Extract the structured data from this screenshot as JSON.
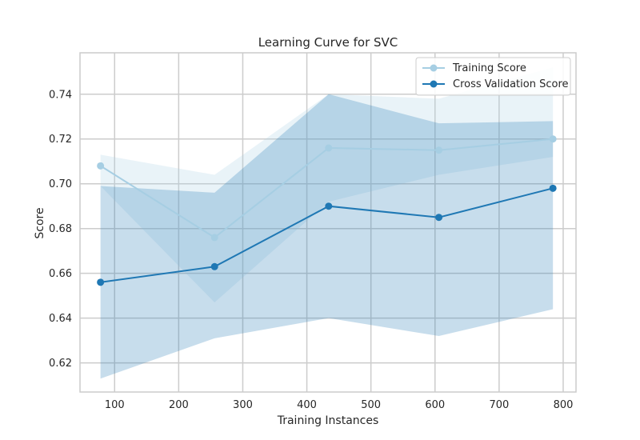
{
  "chart_data": {
    "type": "line",
    "title": "Learning Curve for SVC",
    "xlabel": "Training Instances",
    "ylabel": "Score",
    "xlim": [
      46,
      820
    ],
    "ylim": [
      0.607,
      0.7585
    ],
    "xticks": [
      100,
      200,
      300,
      400,
      500,
      600,
      700,
      800
    ],
    "yticks": [
      0.62,
      0.64,
      0.66,
      0.68,
      0.7,
      0.72,
      0.74
    ],
    "grid": true,
    "legend_position": "top-right",
    "x": [
      78,
      256,
      434,
      606,
      784
    ],
    "series": [
      {
        "name": "Training Score",
        "color": "#a6cee3",
        "values": [
          0.708,
          0.676,
          0.716,
          0.715,
          0.72
        ],
        "band_upper": [
          0.713,
          0.704,
          0.74,
          0.738,
          0.752
        ],
        "band_lower": [
          0.699,
          0.647,
          0.692,
          0.704,
          0.712
        ]
      },
      {
        "name": "Cross Validation Score",
        "color": "#1f78b4",
        "values": [
          0.656,
          0.663,
          0.69,
          0.685,
          0.698
        ],
        "band_upper": [
          0.699,
          0.696,
          0.74,
          0.727,
          0.728
        ],
        "band_lower": [
          0.613,
          0.631,
          0.64,
          0.632,
          0.644
        ]
      }
    ]
  }
}
